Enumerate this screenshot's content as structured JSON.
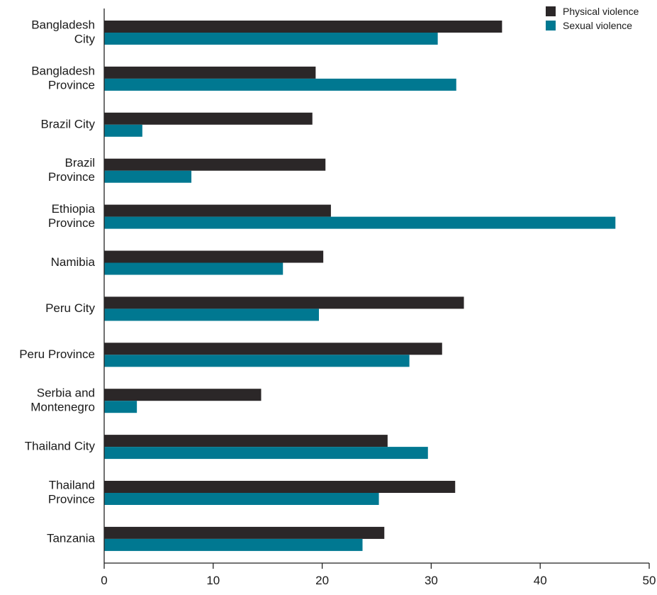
{
  "chart_data": {
    "type": "bar",
    "orientation": "horizontal",
    "categories": [
      [
        "Bangladesh",
        "City"
      ],
      [
        "Bangladesh",
        "Province"
      ],
      [
        "Brazil City"
      ],
      [
        "Brazil",
        "Province"
      ],
      [
        "Ethiopia",
        "Province"
      ],
      [
        "Namibia"
      ],
      [
        "Peru City"
      ],
      [
        "Peru Province"
      ],
      [
        "Serbia and",
        "Montenegro"
      ],
      [
        "Thailand City"
      ],
      [
        "Thailand",
        "Province"
      ],
      [
        "Tanzania"
      ]
    ],
    "series": [
      {
        "name": "Physical violence",
        "color": "#2b2728",
        "values": [
          36.5,
          19.4,
          19.1,
          20.3,
          20.8,
          20.1,
          33.0,
          31.0,
          14.4,
          26.0,
          32.2,
          25.7
        ]
      },
      {
        "name": "Sexual violence",
        "color": "#007891",
        "values": [
          30.6,
          32.3,
          3.5,
          8.0,
          46.9,
          16.4,
          19.7,
          28.0,
          3.0,
          29.7,
          25.2,
          23.7
        ]
      }
    ],
    "xlim": [
      0,
      50
    ],
    "xticks": [
      0,
      10,
      20,
      30,
      40,
      50
    ],
    "title": "",
    "xlabel": "",
    "ylabel": "",
    "grid": false,
    "legend_position": "top-right"
  }
}
